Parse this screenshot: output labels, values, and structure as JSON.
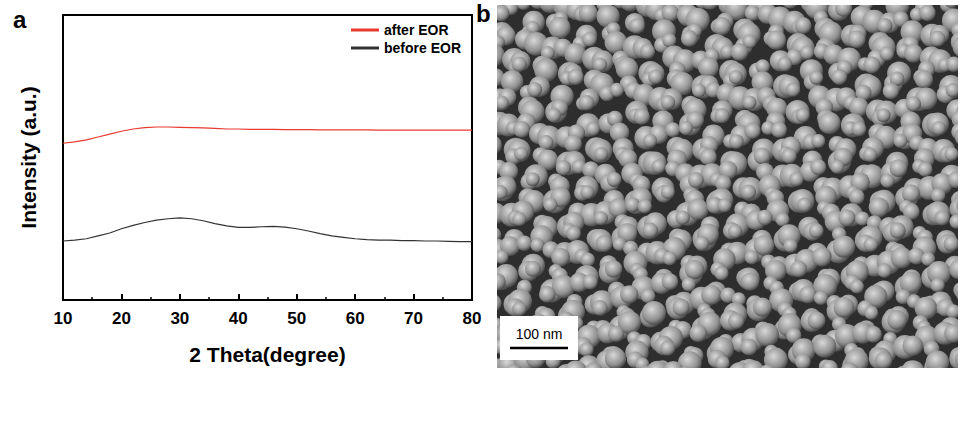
{
  "chart_data": [
    {
      "type": "line",
      "title": "a",
      "x_label": "2 Theta(degree)",
      "y_label": "Intensity (a.u.)",
      "x": [
        10,
        12,
        14,
        16,
        18,
        20,
        22,
        24,
        26,
        28,
        30,
        32,
        34,
        36,
        38,
        40,
        42,
        44,
        46,
        48,
        50,
        52,
        54,
        56,
        58,
        60,
        62,
        64,
        66,
        68,
        70,
        72,
        74,
        76,
        78,
        80
      ],
      "series": [
        {
          "name": "after EOR",
          "color": "#e8392f",
          "values": [
            5.5,
            5.55,
            5.62,
            5.72,
            5.82,
            5.92,
            6.0,
            6.05,
            6.07,
            6.07,
            6.06,
            6.05,
            6.04,
            6.02,
            6.0,
            6.0,
            5.99,
            5.99,
            5.99,
            5.98,
            5.98,
            5.98,
            5.97,
            5.97,
            5.97,
            5.97,
            5.97,
            5.96,
            5.96,
            5.96,
            5.96,
            5.96,
            5.96,
            5.96,
            5.96,
            5.96
          ]
        },
        {
          "name": "before EOR",
          "color": "#333333",
          "values": [
            2.07,
            2.1,
            2.15,
            2.25,
            2.35,
            2.5,
            2.62,
            2.72,
            2.8,
            2.85,
            2.88,
            2.85,
            2.78,
            2.68,
            2.6,
            2.55,
            2.55,
            2.57,
            2.58,
            2.56,
            2.5,
            2.42,
            2.33,
            2.25,
            2.2,
            2.15,
            2.12,
            2.1,
            2.1,
            2.08,
            2.08,
            2.07,
            2.07,
            2.06,
            2.05,
            2.05
          ]
        }
      ],
      "xlim": [
        10,
        80
      ],
      "xticks": [
        10,
        20,
        30,
        40,
        50,
        60,
        70,
        80
      ],
      "ylim": [
        0,
        10
      ],
      "tick_labels": "x",
      "grid": false,
      "legend": "top-right"
    },
    {
      "type": "image",
      "title": "b",
      "annotations": [
        "100 nm"
      ]
    }
  ]
}
